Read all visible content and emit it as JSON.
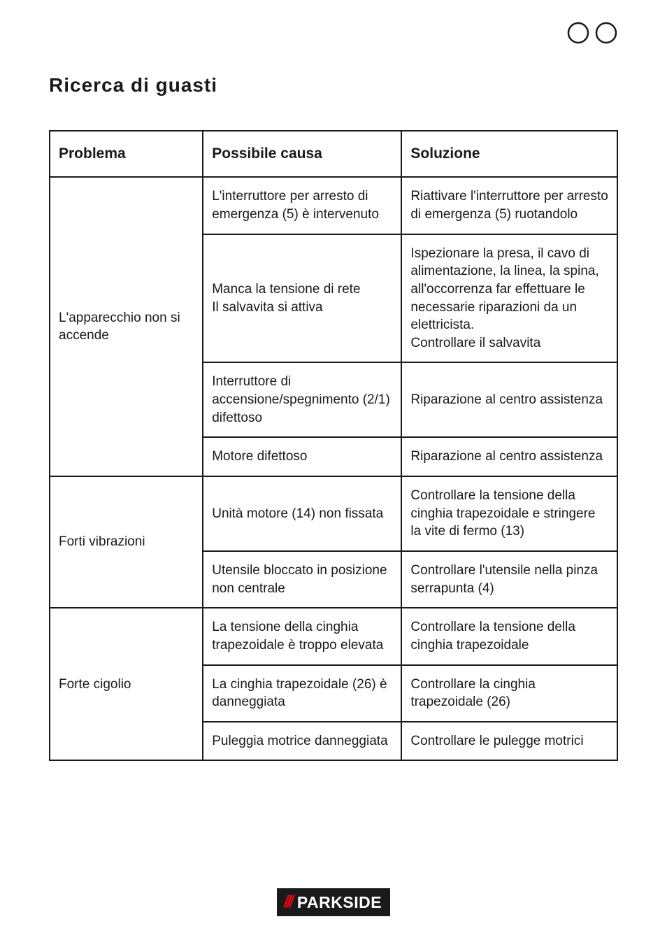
{
  "icons": {
    "circle_stroke": "#1a1a1a",
    "circle_stroke_width": 2.5,
    "circle_radius": 14
  },
  "title": "Ricerca di guasti",
  "table": {
    "border_color": "#1a1a1a",
    "border_width": 2,
    "header_fontsize": 21,
    "cell_fontsize": 19,
    "columns": [
      {
        "key": "problema",
        "label": "Problema",
        "width_pct": 27
      },
      {
        "key": "causa",
        "label": "Possibile causa",
        "width_pct": 35
      },
      {
        "key": "soluzione",
        "label": "Soluzione",
        "width_pct": 38
      }
    ],
    "groups": [
      {
        "problema": "L'apparecchio non si accende",
        "rows": [
          {
            "causa": "L'interruttore per arresto di emergenza (5) è intervenuto",
            "soluzione": "Riattivare l'interruttore per arresto di emergenza (5) ruotandolo"
          },
          {
            "causa": "Manca la tensione di rete\nIl salvavita si attiva",
            "soluzione": "Ispezionare la presa, il cavo di alimentazione, la linea, la spina, all'occorrenza far effettuare le necessarie riparazioni da un elettricista.\nControllare il salvavita"
          },
          {
            "causa": "Interruttore di accensione/spegnimento (2/1) difettoso",
            "soluzione": "Riparazione al centro assistenza"
          },
          {
            "causa": "Motore difettoso",
            "soluzione": "Riparazione al centro assistenza"
          }
        ]
      },
      {
        "problema": "Forti vibrazioni",
        "rows": [
          {
            "causa": "Unità motore (14) non fissata",
            "soluzione": "Controllare la tensione della cinghia trapezoidale e stringere la vite di fermo (13)"
          },
          {
            "causa": "Utensile bloccato in posizione non centrale",
            "soluzione": "Controllare l'utensile nella pinza serrapunta (4)"
          }
        ]
      },
      {
        "problema": "Forte cigolio",
        "rows": [
          {
            "causa": "La tensione della cinghia trapezoidale è troppo elevata",
            "soluzione": "Controllare la tensione della cinghia trapezoidale"
          },
          {
            "causa": "La cinghia trapezoidale (26) è danneggiata",
            "soluzione": "Controllare la cinghia trapezoidale (26)"
          },
          {
            "causa": "Puleggia motrice danneggiata",
            "soluzione": "Controllare le pulegge motrici"
          }
        ]
      }
    ]
  },
  "logo": {
    "slashes": "///",
    "text": "PARKSIDE",
    "bg": "#1a1a1a",
    "fg": "#ffffff",
    "accent": "#e30613"
  }
}
